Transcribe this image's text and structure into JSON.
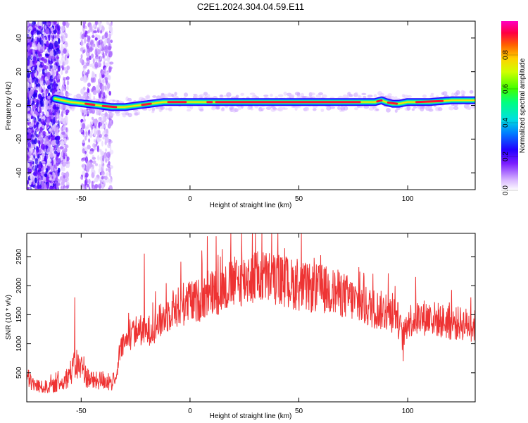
{
  "title": "C2E1.2024.304.04.59.E11",
  "chart_data": [
    {
      "type": "heatmap",
      "xlabel": "Height of straight line (km)",
      "ylabel": "Frequency (Hz)",
      "xlim": [
        -75,
        131
      ],
      "ylim": [
        -50,
        50
      ],
      "x_ticks": [
        -50,
        0,
        50,
        100
      ],
      "y_ticks": [
        -40,
        -20,
        0,
        20,
        40
      ],
      "colorbar": {
        "label": "Normalized spectral amplitude",
        "range": [
          0,
          1
        ],
        "ticks": [
          "0.0",
          "0.2",
          "0.4",
          "0.6",
          "0.8"
        ]
      },
      "ridge": {
        "x": [
          -62,
          -55,
          -48,
          -42,
          -36,
          -30,
          -24,
          -18,
          -12,
          -6,
          0,
          10,
          20,
          30,
          40,
          50,
          60,
          70,
          80,
          85,
          88,
          90,
          93,
          96,
          100,
          110,
          120,
          131
        ],
        "freq": [
          4,
          2,
          1,
          0,
          -1,
          -1,
          0,
          1,
          2,
          2,
          2,
          2,
          2,
          2,
          2,
          2,
          2,
          2,
          2,
          2,
          3,
          2,
          1,
          1,
          2,
          2,
          3,
          3
        ]
      }
    },
    {
      "type": "line",
      "xlabel": "Height of straight line (km)",
      "ylabel": "SNR (10 * v/v)",
      "xlim": [
        -75,
        131
      ],
      "ylim": [
        0,
        2900
      ],
      "x_ticks": [
        -50,
        0,
        50,
        100
      ],
      "y_ticks": [
        500,
        1000,
        1500,
        2000,
        2500
      ],
      "series": [
        {
          "color": "#ee3333",
          "x": [
            -75,
            -72,
            -68,
            -62,
            -58,
            -55,
            -52,
            -48,
            -44,
            -40,
            -37,
            -34,
            -32,
            -30,
            -27,
            -24,
            -20,
            -16,
            -12,
            -8,
            -4,
            0,
            4,
            8,
            12,
            16,
            20,
            25,
            30,
            35,
            40,
            45,
            50,
            55,
            60,
            65,
            70,
            75,
            80,
            85,
            90,
            95,
            98,
            100,
            105,
            110,
            115,
            120,
            125,
            131
          ],
          "values": [
            420,
            300,
            250,
            280,
            350,
            500,
            650,
            450,
            350,
            380,
            330,
            360,
            900,
            1000,
            1150,
            1250,
            1200,
            1300,
            1450,
            1600,
            1650,
            1700,
            1750,
            1850,
            1900,
            1950,
            2050,
            2100,
            2150,
            2150,
            2100,
            2050,
            2000,
            1950,
            1950,
            1900,
            1850,
            1750,
            1650,
            1600,
            1550,
            1500,
            1050,
            1400,
            1450,
            1450,
            1400,
            1350,
            1350,
            1300
          ],
          "spikes": [
            {
              "x": -53,
              "y": 1800
            },
            {
              "x": -28,
              "y": 1100
            },
            {
              "x": -26,
              "y": 1400
            },
            {
              "x": -21,
              "y": 2550
            },
            {
              "x": -3,
              "y": 2050
            },
            {
              "x": 8,
              "y": 2850
            },
            {
              "x": 12,
              "y": 2850
            },
            {
              "x": 14,
              "y": 2500
            },
            {
              "x": 27,
              "y": 2450
            },
            {
              "x": 40,
              "y": 2300
            },
            {
              "x": 98,
              "y": 700
            }
          ]
        }
      ]
    }
  ]
}
